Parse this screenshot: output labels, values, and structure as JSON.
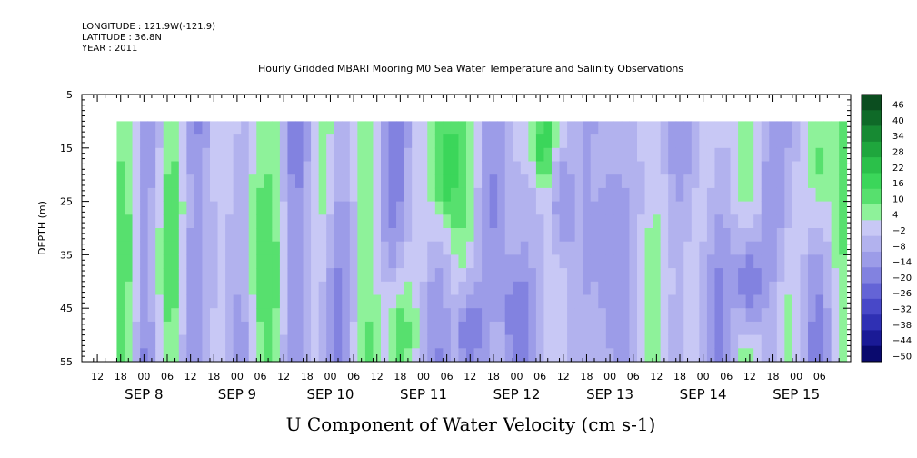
{
  "meta": {
    "longitude": "LONGITUDE : 121.9W(-121.9)",
    "latitude": "LATITUDE : 36.8N",
    "year": "YEAR : 2011"
  },
  "chart_data": {
    "type": "heatmap",
    "title": "Hourly Gridded MBARI Mooring M0 Sea Water Temperature and Salinity Observations",
    "xlabel": "U Component of Water Velocity (cm s-1)",
    "ylabel": "DEPTH (m)",
    "y_axis": {
      "range": [
        5,
        55
      ],
      "inverted": true,
      "ticks": [
        5,
        15,
        25,
        35,
        45,
        55
      ]
    },
    "x_axis": {
      "start": "2011-09-07 08:00",
      "end": "2011-09-15 14:00",
      "hour_ticks": [
        "12",
        "18",
        "00",
        "06",
        "12",
        "18",
        "00",
        "06",
        "12",
        "18",
        "00",
        "06",
        "12",
        "18",
        "00",
        "06",
        "12",
        "18",
        "00",
        "06",
        "12",
        "18",
        "00",
        "06",
        "12",
        "18",
        "00",
        "06",
        "12",
        "18",
        "00",
        "06"
      ],
      "date_labels": [
        "SEP  8",
        "SEP  9",
        "SEP 10",
        "SEP 11",
        "SEP 12",
        "SEP 13",
        "SEP 14",
        "SEP 15"
      ]
    },
    "data_extent": {
      "time_start": "2011-09-07 17:00",
      "time_end": "2011-09-15 13:00",
      "depth_top": 10,
      "depth_bottom": 55
    },
    "colorbar": {
      "levels": [
        46,
        40,
        34,
        28,
        22,
        16,
        10,
        4,
        -2,
        -8,
        -14,
        -20,
        -26,
        -32,
        -38,
        -44,
        -50
      ],
      "colors_high_to_low": [
        "#0b4d1f",
        "#0f6a28",
        "#178a33",
        "#1fa63d",
        "#2bc04a",
        "#3bd65a",
        "#57e06e",
        "#8ef29a",
        "#c8c8f5",
        "#b2b2ee",
        "#9c9ce8",
        "#8282e0",
        "#6464d6",
        "#4848c8",
        "#2f30b4",
        "#1a1a96",
        "#0a0a6e"
      ]
    },
    "velocity_samples": [
      {
        "time": "2011-09-07 18:00",
        "depth_range": [
          10,
          55
        ],
        "value": 8
      },
      {
        "time": "2011-09-08 20:00",
        "depth_range": [
          10,
          55
        ],
        "value": -8
      },
      {
        "time": "2011-09-09 06:00",
        "depth_range": [
          15,
          45
        ],
        "value": 6
      },
      {
        "time": "2011-09-10 18:00",
        "depth_range": [
          45,
          55
        ],
        "value": 8
      },
      {
        "time": "2011-09-11 06:00",
        "depth_range": [
          10,
          25
        ],
        "value": 16
      },
      {
        "time": "2011-09-11 12:00",
        "depth_range": [
          45,
          55
        ],
        "value": -26
      },
      {
        "time": "2011-09-12 00:00",
        "depth_range": [
          40,
          55
        ],
        "value": -26
      },
      {
        "time": "2011-09-12 08:00",
        "depth_range": [
          10,
          20
        ],
        "value": 20
      },
      {
        "time": "2011-09-12 12:00",
        "depth_range": [
          15,
          35
        ],
        "value": -20
      },
      {
        "time": "2011-09-13 00:00",
        "depth_range": [
          10,
          55
        ],
        "value": -16
      },
      {
        "time": "2011-09-14 12:00",
        "depth_range": [
          35,
          45
        ],
        "value": -26
      },
      {
        "time": "2011-09-15 06:00",
        "depth_range": [
          10,
          25
        ],
        "value": 6
      }
    ]
  }
}
